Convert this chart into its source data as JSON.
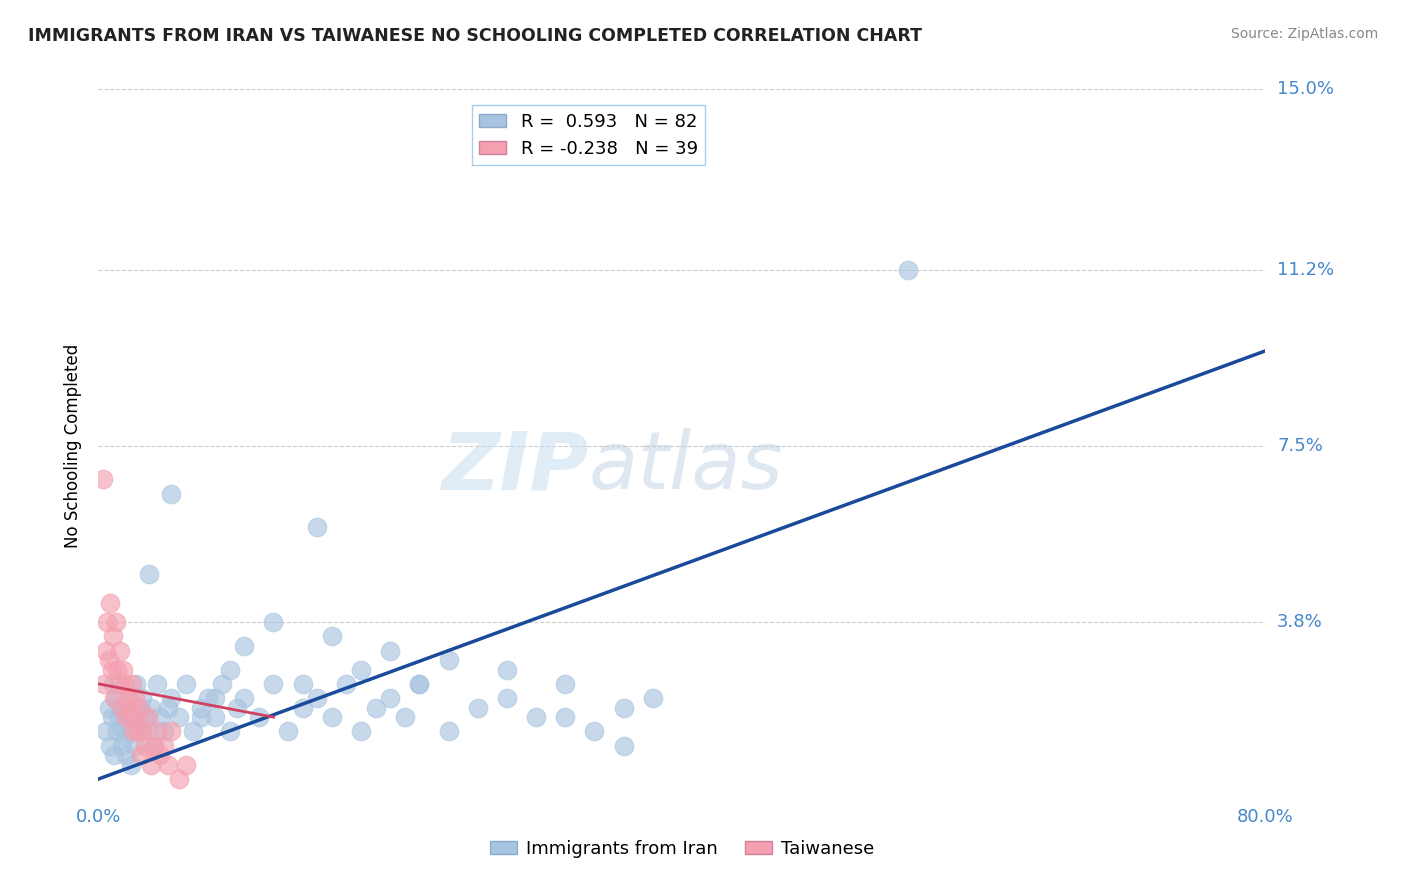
{
  "title": "IMMIGRANTS FROM IRAN VS TAIWANESE NO SCHOOLING COMPLETED CORRELATION CHART",
  "source": "Source: ZipAtlas.com",
  "ylabel": "No Schooling Completed",
  "xlim": [
    0.0,
    0.8
  ],
  "ylim": [
    0.0,
    0.15
  ],
  "xticks": [
    0.0,
    0.2,
    0.4,
    0.6,
    0.8
  ],
  "yticks": [
    0.0,
    0.038,
    0.075,
    0.112,
    0.15
  ],
  "xtick_labels": [
    "0.0%",
    "",
    "",
    "",
    "80.0%"
  ],
  "ytick_labels": [
    "",
    "3.8%",
    "7.5%",
    "11.2%",
    "15.0%"
  ],
  "blue_R": 0.593,
  "blue_N": 82,
  "pink_R": -0.238,
  "pink_N": 39,
  "blue_color": "#A8C4E0",
  "pink_color": "#F4A0B0",
  "blue_line_color": "#1A4A9A",
  "pink_line_color": "#D04060",
  "legend_label_blue": "Immigrants from Iran",
  "legend_label_pink": "Taiwanese",
  "watermark_zip": "ZIP",
  "watermark_atlas": "atlas",
  "blue_line_x": [
    0.0,
    0.8
  ],
  "blue_line_y": [
    0.005,
    0.095
  ],
  "pink_line_x": [
    0.0,
    0.12
  ],
  "pink_line_y": [
    0.025,
    0.018
  ],
  "blue_scatter_x": [
    0.005,
    0.007,
    0.008,
    0.009,
    0.01,
    0.011,
    0.012,
    0.013,
    0.014,
    0.015,
    0.016,
    0.017,
    0.018,
    0.019,
    0.02,
    0.021,
    0.022,
    0.023,
    0.024,
    0.025,
    0.026,
    0.027,
    0.028,
    0.029,
    0.03,
    0.032,
    0.034,
    0.036,
    0.038,
    0.04,
    0.042,
    0.045,
    0.048,
    0.05,
    0.055,
    0.06,
    0.065,
    0.07,
    0.075,
    0.08,
    0.085,
    0.09,
    0.095,
    0.1,
    0.11,
    0.12,
    0.13,
    0.14,
    0.15,
    0.16,
    0.17,
    0.18,
    0.19,
    0.2,
    0.21,
    0.22,
    0.24,
    0.26,
    0.28,
    0.3,
    0.32,
    0.34,
    0.36,
    0.38,
    0.32,
    0.36,
    0.28,
    0.24,
    0.22,
    0.2,
    0.18,
    0.16,
    0.14,
    0.12,
    0.1,
    0.09,
    0.08,
    0.07,
    0.555,
    0.15,
    0.05,
    0.035
  ],
  "blue_scatter_y": [
    0.015,
    0.02,
    0.012,
    0.018,
    0.025,
    0.01,
    0.022,
    0.015,
    0.018,
    0.02,
    0.012,
    0.016,
    0.014,
    0.01,
    0.018,
    0.022,
    0.008,
    0.015,
    0.02,
    0.012,
    0.025,
    0.018,
    0.015,
    0.02,
    0.022,
    0.018,
    0.015,
    0.02,
    0.012,
    0.025,
    0.018,
    0.015,
    0.02,
    0.022,
    0.018,
    0.025,
    0.015,
    0.02,
    0.022,
    0.018,
    0.025,
    0.015,
    0.02,
    0.022,
    0.018,
    0.025,
    0.015,
    0.02,
    0.022,
    0.018,
    0.025,
    0.015,
    0.02,
    0.022,
    0.018,
    0.025,
    0.015,
    0.02,
    0.022,
    0.018,
    0.025,
    0.015,
    0.02,
    0.022,
    0.018,
    0.012,
    0.028,
    0.03,
    0.025,
    0.032,
    0.028,
    0.035,
    0.025,
    0.038,
    0.033,
    0.028,
    0.022,
    0.018,
    0.112,
    0.058,
    0.065,
    0.048
  ],
  "pink_scatter_x": [
    0.003,
    0.004,
    0.005,
    0.006,
    0.007,
    0.008,
    0.009,
    0.01,
    0.011,
    0.012,
    0.013,
    0.014,
    0.015,
    0.016,
    0.017,
    0.018,
    0.019,
    0.02,
    0.021,
    0.022,
    0.023,
    0.024,
    0.025,
    0.026,
    0.027,
    0.028,
    0.029,
    0.03,
    0.032,
    0.034,
    0.036,
    0.038,
    0.04,
    0.042,
    0.045,
    0.048,
    0.05,
    0.055,
    0.06
  ],
  "pink_scatter_y": [
    0.068,
    0.025,
    0.032,
    0.038,
    0.03,
    0.042,
    0.028,
    0.035,
    0.022,
    0.038,
    0.028,
    0.025,
    0.032,
    0.02,
    0.028,
    0.025,
    0.018,
    0.022,
    0.02,
    0.018,
    0.025,
    0.015,
    0.022,
    0.018,
    0.015,
    0.02,
    0.01,
    0.015,
    0.012,
    0.018,
    0.008,
    0.012,
    0.015,
    0.01,
    0.012,
    0.008,
    0.015,
    0.005,
    0.008
  ]
}
